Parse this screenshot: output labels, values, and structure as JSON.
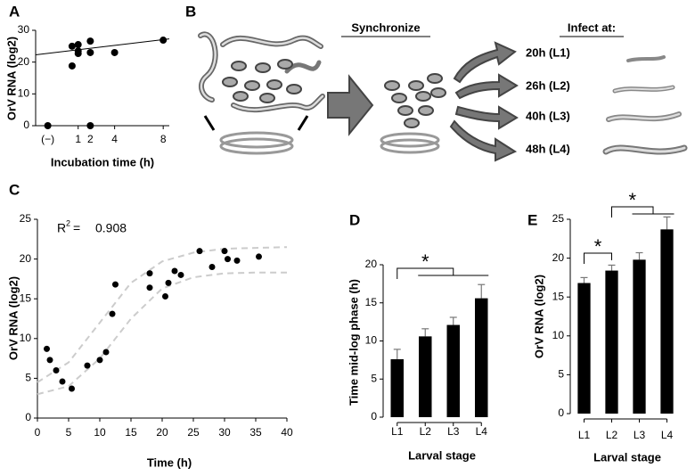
{
  "chart_data": [
    {
      "type": "scatter",
      "panel": "A",
      "xlabel": "Incubation time (h)",
      "ylabel": "OrV RNA (log2)",
      "xlim": [
        -2.5,
        8.5
      ],
      "xticks": [
        {
          "value": -1.5,
          "label": "(−)"
        },
        1,
        2,
        4,
        8
      ],
      "ylim": [
        0,
        30
      ],
      "yticks": [
        0,
        10,
        20,
        30
      ],
      "color": "#000000",
      "x": [
        -1.5,
        0.5,
        0.5,
        1,
        1,
        1,
        2,
        2,
        2,
        4,
        8
      ],
      "values": [
        0,
        25,
        18.8,
        25.5,
        23.5,
        22.7,
        26.6,
        23,
        0,
        23,
        26.9
      ],
      "fit_lines": [
        {
          "color": "#000000",
          "x": [
            -2.5,
            8.5
          ],
          "values": [
            22.3,
            27.3
          ]
        }
      ]
    },
    {
      "type": "scatter",
      "panel": "C",
      "xlabel": "Time (h)",
      "ylabel": "OrV RNA (log2)",
      "xlim": [
        0,
        40
      ],
      "xticks": [
        0,
        5,
        10,
        15,
        20,
        25,
        30,
        35,
        40
      ],
      "ylim": [
        0,
        25
      ],
      "yticks": [
        0,
        5,
        10,
        15,
        20,
        25
      ],
      "color": "#000000",
      "x": [
        1.5,
        2,
        3,
        4,
        5.5,
        8,
        10,
        11,
        12,
        12.5,
        18,
        18,
        20.5,
        21,
        22,
        23,
        26,
        28,
        30,
        30.5,
        32,
        35.5
      ],
      "values": [
        8.7,
        7.3,
        6,
        4.6,
        3.7,
        6.6,
        7.3,
        8.3,
        13.1,
        16.8,
        18.2,
        16.4,
        15.3,
        17,
        18.5,
        18,
        21,
        19,
        21,
        20,
        19.8,
        20.3
      ],
      "annotation": {
        "symbol": "R",
        "superscript": "2",
        "equals": "=",
        "value": "0.908"
      },
      "fit_lines": [
        {
          "color": "#cccccc",
          "dashed": true,
          "x": [
            0,
            5,
            10,
            15,
            20,
            25,
            30,
            35,
            40
          ],
          "values": [
            4.5,
            7,
            12,
            17,
            19.7,
            20.8,
            21.3,
            21.4,
            21.5
          ]
        },
        {
          "color": "#cccccc",
          "dashed": true,
          "x": [
            0,
            5,
            10,
            15,
            20,
            25,
            30,
            35,
            40
          ],
          "values": [
            3,
            4,
            7.5,
            12.5,
            16.3,
            17.7,
            18.2,
            18.3,
            18.3
          ]
        }
      ]
    },
    {
      "type": "bar",
      "panel": "D",
      "xlabel": "Larval stage",
      "ylabel": "Time mid-log phase (h)",
      "categories": [
        "L1",
        "L2",
        "L3",
        "L4"
      ],
      "values": [
        7.6,
        10.6,
        12.1,
        15.6
      ],
      "errors": [
        1.3,
        1.0,
        1.0,
        1.8
      ],
      "color": "#000000",
      "ylim": [
        0,
        20
      ],
      "yticks": [
        0,
        5,
        10,
        15,
        20
      ],
      "significance": [
        "*"
      ]
    },
    {
      "type": "bar",
      "panel": "E",
      "xlabel": "Larval stage",
      "ylabel": "OrV RNA (log2)",
      "categories": [
        "L1",
        "L2",
        "L3",
        "L4"
      ],
      "values": [
        16.8,
        18.4,
        19.8,
        23.7
      ],
      "errors": [
        0.7,
        0.7,
        0.9,
        1.6
      ],
      "color": "#000000",
      "ylim": [
        0,
        25
      ],
      "yticks": [
        0,
        5,
        10,
        15,
        20,
        25
      ],
      "significance": [
        "*",
        "*"
      ]
    }
  ],
  "diagram": {
    "panel": "B",
    "steps": [
      "Synchronize",
      "Infect at:"
    ],
    "stages": [
      "20h (L1)",
      "26h (L2)",
      "40h (L3)",
      "48h (L4)"
    ]
  }
}
